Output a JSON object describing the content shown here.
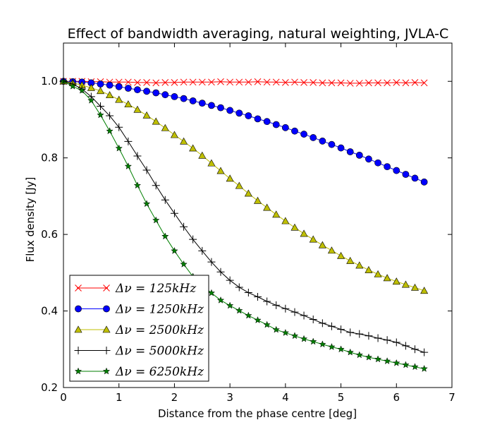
{
  "chart_data": {
    "type": "line",
    "title": "Effect of bandwidth averaging, natural weighting, JVLA-C",
    "xlabel": "Distance from the phase centre [deg]",
    "ylabel": "Flux density [Jy]",
    "xlim": [
      0,
      7
    ],
    "ylim": [
      0.2,
      1.1
    ],
    "xticks": [
      0,
      1,
      2,
      3,
      4,
      5,
      6,
      7
    ],
    "xtick_labels": [
      "0",
      "1",
      "2",
      "3",
      "4",
      "5",
      "6",
      "7"
    ],
    "yticks": [
      0.2,
      0.4,
      0.6,
      0.8,
      1.0
    ],
    "ytick_labels": [
      "0.2",
      "0.4",
      "0.6",
      "0.8",
      "1.0"
    ],
    "grid": false,
    "legend_position": "lower-left",
    "x": [
      0.0,
      0.167,
      0.333,
      0.5,
      0.667,
      0.833,
      1.0,
      1.167,
      1.333,
      1.5,
      1.667,
      1.833,
      2.0,
      2.167,
      2.333,
      2.5,
      2.667,
      2.833,
      3.0,
      3.167,
      3.333,
      3.5,
      3.667,
      3.833,
      4.0,
      4.167,
      4.333,
      4.5,
      4.667,
      4.833,
      5.0,
      5.167,
      5.333,
      5.5,
      5.667,
      5.833,
      6.0,
      6.167,
      6.333,
      6.5
    ],
    "series": [
      {
        "name_prefix": "Δν = ",
        "name_value": "125kHz",
        "color": "#ff0000",
        "marker": "x",
        "values": [
          1.0,
          1.0,
          1.0,
          0.999,
          0.999,
          0.998,
          0.998,
          0.998,
          0.997,
          0.997,
          0.996,
          0.997,
          0.997,
          0.998,
          0.998,
          0.998,
          0.998,
          0.999,
          0.998,
          0.998,
          0.998,
          0.999,
          0.998,
          0.998,
          0.997,
          0.998,
          0.997,
          0.997,
          0.996,
          0.996,
          0.996,
          0.995,
          0.995,
          0.996,
          0.996,
          0.996,
          0.997,
          0.996,
          0.997,
          0.996
        ]
      },
      {
        "name_prefix": "Δν = ",
        "name_value": "1250kHz",
        "color": "#0000ff",
        "marker": "o",
        "values": [
          1.0,
          0.999,
          0.998,
          0.996,
          0.993,
          0.99,
          0.986,
          0.982,
          0.978,
          0.974,
          0.97,
          0.965,
          0.96,
          0.955,
          0.949,
          0.943,
          0.937,
          0.931,
          0.924,
          0.917,
          0.91,
          0.902,
          0.895,
          0.887,
          0.879,
          0.87,
          0.862,
          0.853,
          0.844,
          0.835,
          0.826,
          0.816,
          0.807,
          0.797,
          0.787,
          0.777,
          0.767,
          0.757,
          0.747,
          0.737
        ]
      },
      {
        "name_prefix": "Δν = ",
        "name_value": "2500kHz",
        "color": "#bfbf00",
        "marker": "^",
        "values": [
          1.0,
          0.996,
          0.99,
          0.983,
          0.975,
          0.964,
          0.952,
          0.94,
          0.926,
          0.911,
          0.895,
          0.878,
          0.86,
          0.843,
          0.825,
          0.806,
          0.786,
          0.766,
          0.746,
          0.727,
          0.707,
          0.688,
          0.67,
          0.652,
          0.635,
          0.618,
          0.602,
          0.587,
          0.572,
          0.558,
          0.544,
          0.531,
          0.519,
          0.507,
          0.496,
          0.486,
          0.477,
          0.469,
          0.461,
          0.453
        ]
      },
      {
        "name_prefix": "Δν = ",
        "name_value": "5000kHz",
        "color": "#000000",
        "marker": "+",
        "values": [
          1.0,
          0.993,
          0.98,
          0.96,
          0.935,
          0.91,
          0.88,
          0.843,
          0.805,
          0.768,
          0.728,
          0.69,
          0.655,
          0.62,
          0.587,
          0.557,
          0.528,
          0.502,
          0.48,
          0.462,
          0.448,
          0.437,
          0.425,
          0.415,
          0.406,
          0.397,
          0.388,
          0.378,
          0.368,
          0.36,
          0.352,
          0.344,
          0.34,
          0.335,
          0.329,
          0.324,
          0.318,
          0.309,
          0.3,
          0.292
        ]
      },
      {
        "name_prefix": "Δν = ",
        "name_value": "6250kHz",
        "color": "#007f00",
        "marker": "*",
        "values": [
          1.0,
          0.987,
          0.976,
          0.95,
          0.912,
          0.87,
          0.825,
          0.778,
          0.728,
          0.68,
          0.637,
          0.595,
          0.557,
          0.522,
          0.49,
          0.467,
          0.447,
          0.428,
          0.414,
          0.401,
          0.388,
          0.376,
          0.364,
          0.351,
          0.343,
          0.335,
          0.327,
          0.32,
          0.313,
          0.306,
          0.3,
          0.292,
          0.285,
          0.279,
          0.274,
          0.269,
          0.264,
          0.259,
          0.254,
          0.249
        ]
      }
    ]
  }
}
